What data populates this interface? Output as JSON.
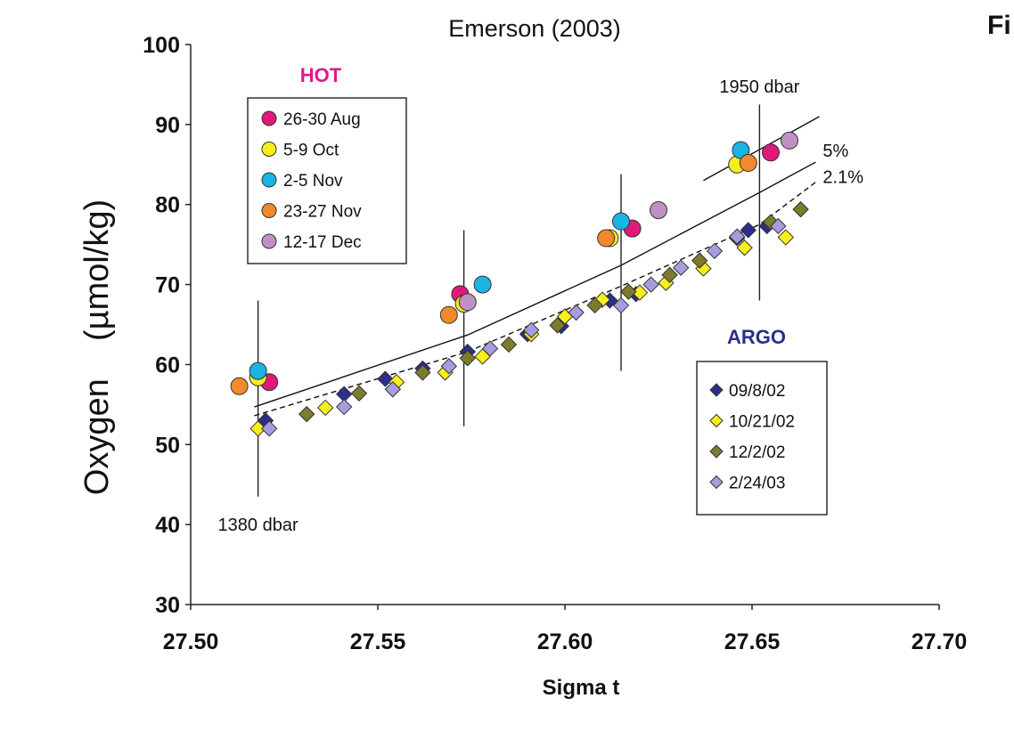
{
  "corner_text": "Fi",
  "chart_data": {
    "type": "scatter",
    "title": "Emerson (2003)",
    "xlabel": "Sigma t",
    "ylabel": "Oxygen    (µmol/kg)",
    "xlim": [
      27.5,
      27.7
    ],
    "ylim": [
      30,
      100
    ],
    "xticks": [
      "27.50",
      "27.55",
      "27.60",
      "27.65",
      "27.70"
    ],
    "yticks": [
      "30",
      "40",
      "50",
      "60",
      "70",
      "80",
      "90",
      "100"
    ],
    "grid": false,
    "colors": {
      "hot_title": "#e0188c",
      "argo_title": "#2b2e8c"
    },
    "legend_hot": {
      "title": "HOT",
      "placement": "top-left",
      "entries": [
        {
          "label": "26-30 Aug",
          "color": "#e0187a"
        },
        {
          "label": "5-9 Oct",
          "color": "#f8ee1c"
        },
        {
          "label": "2-5 Nov",
          "color": "#19b3e6"
        },
        {
          "label": "23-27 Nov",
          "color": "#f08a2c"
        },
        {
          "label": "12-17 Dec",
          "color": "#c090c4"
        }
      ]
    },
    "legend_argo": {
      "title": "ARGO",
      "placement": "lower-right",
      "entries": [
        {
          "label": "09/8/02",
          "color": "#2b2e8c"
        },
        {
          "label": "10/21/02",
          "color": "#f8ee1c"
        },
        {
          "label": "12/2/02",
          "color": "#7c7c2c"
        },
        {
          "label": "2/24/03",
          "color": "#a89ce0"
        }
      ]
    },
    "hot_series": [
      {
        "name": "26-30 Aug",
        "points": [
          [
            27.521,
            57.8
          ],
          [
            27.572,
            68.8
          ],
          [
            27.618,
            77.0
          ],
          [
            27.655,
            86.5
          ]
        ]
      },
      {
        "name": "5-9 Oct",
        "points": [
          [
            27.518,
            58.4
          ],
          [
            27.573,
            67.6
          ],
          [
            27.612,
            75.8
          ],
          [
            27.646,
            85.0
          ]
        ]
      },
      {
        "name": "2-5 Nov",
        "points": [
          [
            27.518,
            59.2
          ],
          [
            27.578,
            70.0
          ],
          [
            27.615,
            77.9
          ],
          [
            27.647,
            86.8
          ]
        ]
      },
      {
        "name": "23-27 Nov",
        "points": [
          [
            27.513,
            57.3
          ],
          [
            27.569,
            66.2
          ],
          [
            27.611,
            75.8
          ],
          [
            27.649,
            85.2
          ]
        ]
      },
      {
        "name": "12-17 Dec",
        "points": [
          [
            27.574,
            67.8
          ],
          [
            27.625,
            79.3
          ],
          [
            27.66,
            88.0
          ]
        ]
      }
    ],
    "argo_series": [
      {
        "name": "09/8/02",
        "points": [
          [
            27.52,
            53.0
          ],
          [
            27.541,
            56.3
          ],
          [
            27.552,
            58.2
          ],
          [
            27.562,
            59.5
          ],
          [
            27.574,
            61.6
          ],
          [
            27.59,
            63.8
          ],
          [
            27.599,
            64.8
          ],
          [
            27.612,
            68.0
          ],
          [
            27.619,
            68.8
          ],
          [
            27.646,
            75.8
          ],
          [
            27.649,
            76.8
          ],
          [
            27.654,
            77.3
          ]
        ]
      },
      {
        "name": "10/21/02",
        "points": [
          [
            27.518,
            52.0
          ],
          [
            27.536,
            54.6
          ],
          [
            27.555,
            57.8
          ],
          [
            27.568,
            59.0
          ],
          [
            27.578,
            61.0
          ],
          [
            27.591,
            63.8
          ],
          [
            27.6,
            66.0
          ],
          [
            27.61,
            68.1
          ],
          [
            27.62,
            69.0
          ],
          [
            27.627,
            70.2
          ],
          [
            27.637,
            72.0
          ],
          [
            27.648,
            74.6
          ],
          [
            27.659,
            75.9
          ]
        ]
      },
      {
        "name": "12/2/02",
        "points": [
          [
            27.531,
            53.8
          ],
          [
            27.545,
            56.4
          ],
          [
            27.562,
            59.0
          ],
          [
            27.574,
            60.8
          ],
          [
            27.585,
            62.5
          ],
          [
            27.598,
            64.9
          ],
          [
            27.608,
            67.4
          ],
          [
            27.617,
            69.1
          ],
          [
            27.628,
            71.2
          ],
          [
            27.636,
            73.0
          ],
          [
            27.655,
            77.8
          ],
          [
            27.663,
            79.4
          ]
        ]
      },
      {
        "name": "2/24/03",
        "points": [
          [
            27.521,
            52.0
          ],
          [
            27.541,
            54.7
          ],
          [
            27.554,
            56.9
          ],
          [
            27.569,
            59.8
          ],
          [
            27.58,
            62.0
          ],
          [
            27.591,
            64.3
          ],
          [
            27.603,
            66.5
          ],
          [
            27.615,
            67.4
          ],
          [
            27.623,
            70.0
          ],
          [
            27.631,
            72.1
          ],
          [
            27.64,
            74.2
          ],
          [
            27.646,
            76.0
          ],
          [
            27.657,
            77.3
          ]
        ]
      }
    ],
    "curves": [
      {
        "label": "5%",
        "style": "solid",
        "points": [
          [
            27.517,
            54.7
          ],
          [
            27.574,
            63.7
          ],
          [
            27.615,
            72.4
          ],
          [
            27.652,
            81.5
          ],
          [
            27.667,
            85.3
          ]
        ]
      },
      {
        "label": "2.1%",
        "style": "dashed",
        "points": [
          [
            27.517,
            53.6
          ],
          [
            27.574,
            61.6
          ],
          [
            27.615,
            69.8
          ],
          [
            27.652,
            77.5
          ],
          [
            27.667,
            82.8
          ]
        ]
      },
      {
        "label": "",
        "style": "solid",
        "points": [
          [
            27.637,
            83.0
          ],
          [
            27.668,
            91.0
          ]
        ]
      }
    ],
    "vertical_bars": [
      {
        "x": 27.518,
        "y": [
          43.5,
          68.0
        ]
      },
      {
        "x": 27.573,
        "y": [
          52.3,
          76.8
        ]
      },
      {
        "x": 27.615,
        "y": [
          59.2,
          83.8
        ]
      },
      {
        "x": 27.652,
        "y": [
          68.0,
          92.5
        ]
      }
    ],
    "annotations": [
      {
        "text": "1950 dbar",
        "x": 27.652,
        "y": 94.0
      },
      {
        "text": "1380 dbar",
        "x": 27.518,
        "y": 41.0
      },
      {
        "text": "5%",
        "x": 27.667,
        "y": 86.0
      },
      {
        "text": "2.1%",
        "x": 27.667,
        "y": 83.5
      }
    ]
  }
}
